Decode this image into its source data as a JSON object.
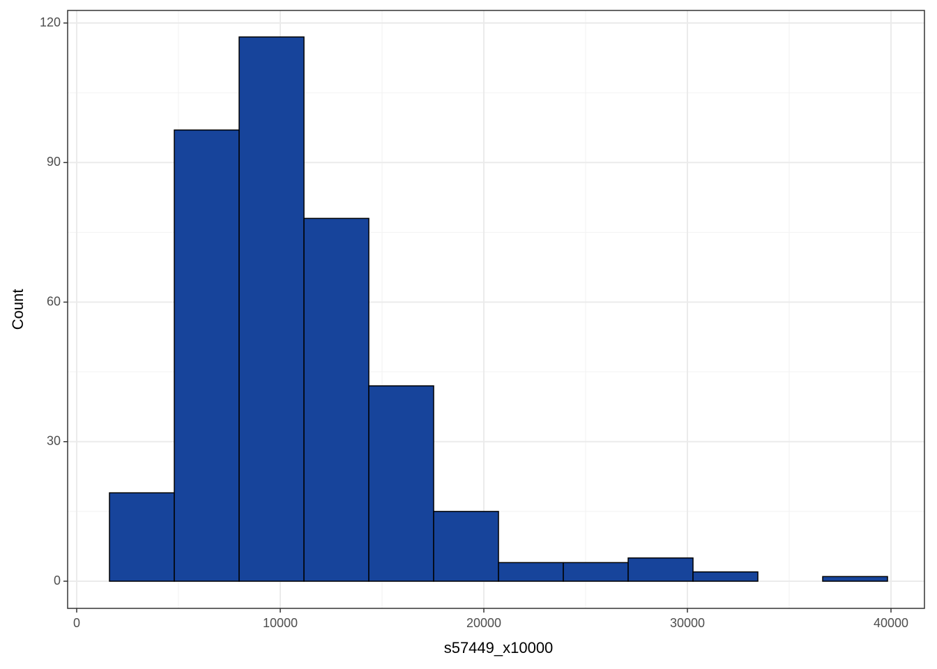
{
  "chart_data": {
    "type": "histogram",
    "x_label": "s57449_x10000",
    "y_label": "Count",
    "bins": [
      1610,
      4795,
      7980,
      11165,
      14350,
      17535,
      20720,
      23905,
      27090,
      30275,
      33460,
      36645,
      39830
    ],
    "values": [
      19,
      97,
      117,
      78,
      42,
      15,
      4,
      4,
      5,
      2,
      0,
      1
    ],
    "color": "#17449b",
    "edge_color": "#000000",
    "xlim": [
      -445,
      41644
    ],
    "ylim": [
      -5.84,
      122.7
    ],
    "xticks": [
      0,
      10000,
      20000,
      30000,
      40000
    ],
    "yticks": [
      0,
      30,
      60,
      90,
      120
    ],
    "x_minor_ticks": [
      5000,
      15000,
      25000,
      35000
    ],
    "y_minor_ticks": [
      15,
      45,
      75,
      105
    ],
    "grid": true
  }
}
